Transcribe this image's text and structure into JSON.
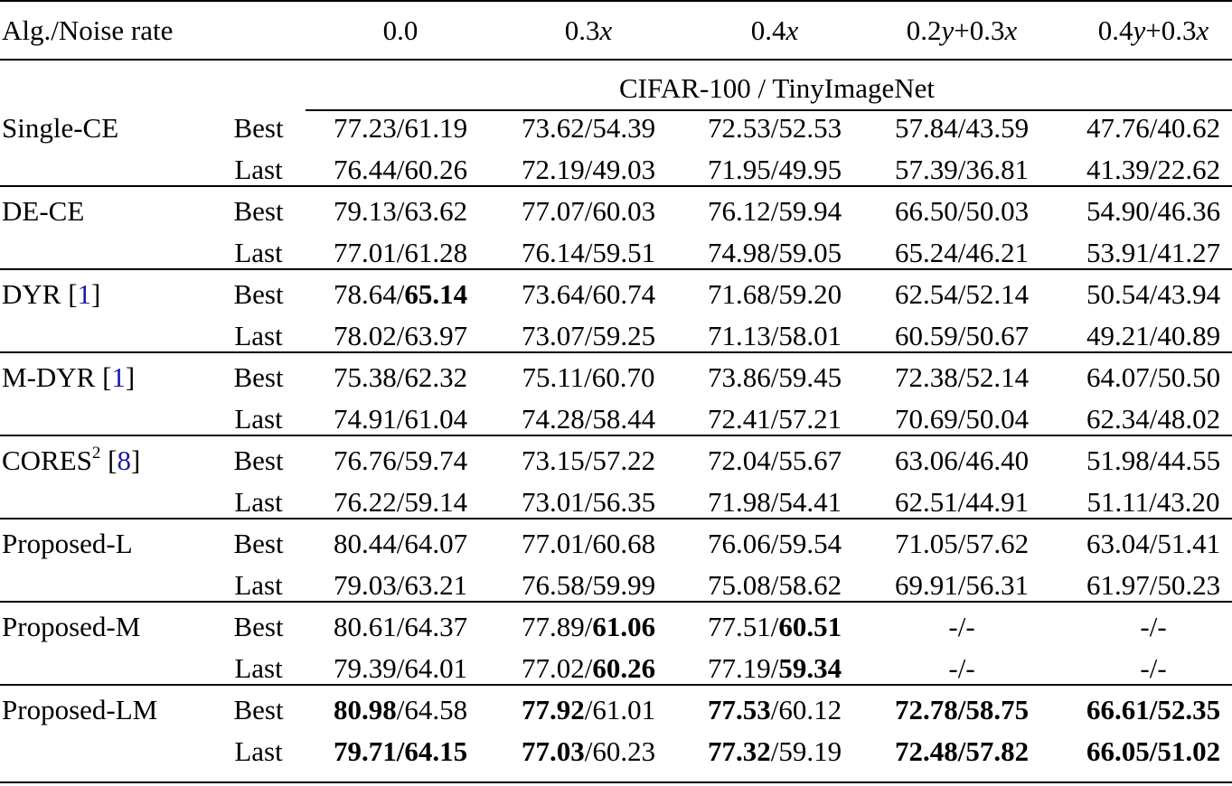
{
  "table": {
    "header": {
      "label": "Alg./Noise rate",
      "columns": [
        {
          "num": "0.0",
          "var": "",
          "rest": ""
        },
        {
          "num": "0.3",
          "var": "x",
          "rest": ""
        },
        {
          "num": "0.4",
          "var": "x",
          "rest": ""
        },
        {
          "num": "0.2",
          "var": "y",
          "rest": "+0.3",
          "var2": "x"
        },
        {
          "num": "0.4",
          "var": "y",
          "rest": "+0.3",
          "var2": "x"
        }
      ]
    },
    "subheader": "CIFAR-100 / TinyImageNet",
    "groups": [
      {
        "name": "Single-CE",
        "sup": "",
        "ref": "",
        "ref_close": "",
        "rows": [
          {
            "type": "Best",
            "cells": [
              {
                "a": "77.23",
                "b": "61.19",
                "bold_a": false,
                "bold_b": false
              },
              {
                "a": "73.62",
                "b": "54.39",
                "bold_a": false,
                "bold_b": false
              },
              {
                "a": "72.53",
                "b": "52.53",
                "bold_a": false,
                "bold_b": false
              },
              {
                "a": "57.84",
                "b": "43.59",
                "bold_a": false,
                "bold_b": false
              },
              {
                "a": "47.76",
                "b": "40.62",
                "bold_a": false,
                "bold_b": false
              }
            ]
          },
          {
            "type": "Last",
            "cells": [
              {
                "a": "76.44",
                "b": "60.26",
                "bold_a": false,
                "bold_b": false
              },
              {
                "a": "72.19",
                "b": "49.03",
                "bold_a": false,
                "bold_b": false
              },
              {
                "a": "71.95",
                "b": "49.95",
                "bold_a": false,
                "bold_b": false
              },
              {
                "a": "57.39",
                "b": "36.81",
                "bold_a": false,
                "bold_b": false
              },
              {
                "a": "41.39",
                "b": "22.62",
                "bold_a": false,
                "bold_b": false
              }
            ]
          }
        ]
      },
      {
        "name": "DE-CE",
        "sup": "",
        "ref": "",
        "ref_close": "",
        "rows": [
          {
            "type": "Best",
            "cells": [
              {
                "a": "79.13",
                "b": "63.62",
                "bold_a": false,
                "bold_b": false
              },
              {
                "a": "77.07",
                "b": "60.03",
                "bold_a": false,
                "bold_b": false
              },
              {
                "a": "76.12",
                "b": "59.94",
                "bold_a": false,
                "bold_b": false
              },
              {
                "a": "66.50",
                "b": "50.03",
                "bold_a": false,
                "bold_b": false
              },
              {
                "a": "54.90",
                "b": "46.36",
                "bold_a": false,
                "bold_b": false
              }
            ]
          },
          {
            "type": "Last",
            "cells": [
              {
                "a": "77.01",
                "b": "61.28",
                "bold_a": false,
                "bold_b": false
              },
              {
                "a": "76.14",
                "b": "59.51",
                "bold_a": false,
                "bold_b": false
              },
              {
                "a": "74.98",
                "b": "59.05",
                "bold_a": false,
                "bold_b": false
              },
              {
                "a": "65.24",
                "b": "46.21",
                "bold_a": false,
                "bold_b": false
              },
              {
                "a": "53.91",
                "b": "41.27",
                "bold_a": false,
                "bold_b": false
              }
            ]
          }
        ]
      },
      {
        "name": "DYR",
        "sup": "",
        "ref": "1",
        "ref_close": "]",
        "rows": [
          {
            "type": "Best",
            "cells": [
              {
                "a": "78.64",
                "b": "65.14",
                "bold_a": false,
                "bold_b": true
              },
              {
                "a": "73.64",
                "b": "60.74",
                "bold_a": false,
                "bold_b": false
              },
              {
                "a": "71.68",
                "b": "59.20",
                "bold_a": false,
                "bold_b": false
              },
              {
                "a": "62.54",
                "b": "52.14",
                "bold_a": false,
                "bold_b": false
              },
              {
                "a": "50.54",
                "b": "43.94",
                "bold_a": false,
                "bold_b": false
              }
            ]
          },
          {
            "type": "Last",
            "cells": [
              {
                "a": "78.02",
                "b": "63.97",
                "bold_a": false,
                "bold_b": false
              },
              {
                "a": "73.07",
                "b": "59.25",
                "bold_a": false,
                "bold_b": false
              },
              {
                "a": "71.13",
                "b": "58.01",
                "bold_a": false,
                "bold_b": false
              },
              {
                "a": "60.59",
                "b": "50.67",
                "bold_a": false,
                "bold_b": false
              },
              {
                "a": "49.21",
                "b": "40.89",
                "bold_a": false,
                "bold_b": false
              }
            ]
          }
        ]
      },
      {
        "name": "M-DYR",
        "sup": "",
        "ref": "1",
        "ref_close": "]",
        "rows": [
          {
            "type": "Best",
            "cells": [
              {
                "a": "75.38",
                "b": "62.32",
                "bold_a": false,
                "bold_b": false
              },
              {
                "a": "75.11",
                "b": "60.70",
                "bold_a": false,
                "bold_b": false
              },
              {
                "a": "73.86",
                "b": "59.45",
                "bold_a": false,
                "bold_b": false
              },
              {
                "a": "72.38",
                "b": "52.14",
                "bold_a": false,
                "bold_b": false
              },
              {
                "a": "64.07",
                "b": "50.50",
                "bold_a": false,
                "bold_b": false
              }
            ]
          },
          {
            "type": "Last",
            "cells": [
              {
                "a": "74.91",
                "b": "61.04",
                "bold_a": false,
                "bold_b": false
              },
              {
                "a": "74.28",
                "b": "58.44",
                "bold_a": false,
                "bold_b": false
              },
              {
                "a": "72.41",
                "b": "57.21",
                "bold_a": false,
                "bold_b": false
              },
              {
                "a": "70.69",
                "b": "50.04",
                "bold_a": false,
                "bold_b": false
              },
              {
                "a": "62.34",
                "b": "48.02",
                "bold_a": false,
                "bold_b": false
              }
            ]
          }
        ]
      },
      {
        "name": "CORES",
        "sup": "2",
        "ref": "8",
        "ref_close": "]",
        "rows": [
          {
            "type": "Best",
            "cells": [
              {
                "a": "76.76",
                "b": "59.74",
                "bold_a": false,
                "bold_b": false
              },
              {
                "a": "73.15",
                "b": "57.22",
                "bold_a": false,
                "bold_b": false
              },
              {
                "a": "72.04",
                "b": "55.67",
                "bold_a": false,
                "bold_b": false
              },
              {
                "a": "63.06",
                "b": "46.40",
                "bold_a": false,
                "bold_b": false
              },
              {
                "a": "51.98",
                "b": "44.55",
                "bold_a": false,
                "bold_b": false
              }
            ]
          },
          {
            "type": "Last",
            "cells": [
              {
                "a": "76.22",
                "b": "59.14",
                "bold_a": false,
                "bold_b": false
              },
              {
                "a": "73.01",
                "b": "56.35",
                "bold_a": false,
                "bold_b": false
              },
              {
                "a": "71.98",
                "b": "54.41",
                "bold_a": false,
                "bold_b": false
              },
              {
                "a": "62.51",
                "b": "44.91",
                "bold_a": false,
                "bold_b": false
              },
              {
                "a": "51.11",
                "b": "43.20",
                "bold_a": false,
                "bold_b": false
              }
            ]
          }
        ]
      },
      {
        "name": "Proposed-L",
        "sup": "",
        "ref": "",
        "ref_close": "",
        "rows": [
          {
            "type": "Best",
            "cells": [
              {
                "a": "80.44",
                "b": "64.07",
                "bold_a": false,
                "bold_b": false
              },
              {
                "a": "77.01",
                "b": "60.68",
                "bold_a": false,
                "bold_b": false
              },
              {
                "a": "76.06",
                "b": "59.54",
                "bold_a": false,
                "bold_b": false
              },
              {
                "a": "71.05",
                "b": "57.62",
                "bold_a": false,
                "bold_b": false
              },
              {
                "a": "63.04",
                "b": "51.41",
                "bold_a": false,
                "bold_b": false
              }
            ]
          },
          {
            "type": "Last",
            "cells": [
              {
                "a": "79.03",
                "b": "63.21",
                "bold_a": false,
                "bold_b": false
              },
              {
                "a": "76.58",
                "b": "59.99",
                "bold_a": false,
                "bold_b": false
              },
              {
                "a": "75.08",
                "b": "58.62",
                "bold_a": false,
                "bold_b": false
              },
              {
                "a": "69.91",
                "b": "56.31",
                "bold_a": false,
                "bold_b": false
              },
              {
                "a": "61.97",
                "b": "50.23",
                "bold_a": false,
                "bold_b": false
              }
            ]
          }
        ]
      },
      {
        "name": "Proposed-M",
        "sup": "",
        "ref": "",
        "ref_close": "",
        "rows": [
          {
            "type": "Best",
            "cells": [
              {
                "a": "80.61",
                "b": "64.37",
                "bold_a": false,
                "bold_b": false
              },
              {
                "a": "77.89",
                "b": "61.06",
                "bold_a": false,
                "bold_b": true
              },
              {
                "a": "77.51",
                "b": "60.51",
                "bold_a": false,
                "bold_b": true
              },
              {
                "a": "-",
                "b": "-",
                "bold_a": false,
                "bold_b": false
              },
              {
                "a": "-",
                "b": "-",
                "bold_a": false,
                "bold_b": false
              }
            ]
          },
          {
            "type": "Last",
            "cells": [
              {
                "a": "79.39",
                "b": "64.01",
                "bold_a": false,
                "bold_b": false
              },
              {
                "a": "77.02",
                "b": "60.26",
                "bold_a": false,
                "bold_b": true
              },
              {
                "a": "77.19",
                "b": "59.34",
                "bold_a": false,
                "bold_b": true
              },
              {
                "a": "-",
                "b": "-",
                "bold_a": false,
                "bold_b": false
              },
              {
                "a": "-",
                "b": "-",
                "bold_a": false,
                "bold_b": false
              }
            ]
          }
        ]
      },
      {
        "name": "Proposed-LM",
        "sup": "",
        "ref": "",
        "ref_close": "",
        "rows": [
          {
            "type": "Best",
            "cells": [
              {
                "a": "80.98",
                "b": "64.58",
                "bold_a": true,
                "bold_b": false
              },
              {
                "a": "77.92",
                "b": "61.01",
                "bold_a": true,
                "bold_b": false
              },
              {
                "a": "77.53",
                "b": "60.12",
                "bold_a": true,
                "bold_b": false
              },
              {
                "a": "72.78",
                "b": "58.75",
                "bold_a": true,
                "bold_b": true
              },
              {
                "a": "66.61",
                "b": "52.35",
                "bold_a": true,
                "bold_b": true
              }
            ]
          },
          {
            "type": "Last",
            "cells": [
              {
                "a": "79.71",
                "b": "64.15",
                "bold_a": true,
                "bold_b": true
              },
              {
                "a": "77.03",
                "b": "60.23",
                "bold_a": true,
                "bold_b": false
              },
              {
                "a": "77.32",
                "b": "59.19",
                "bold_a": true,
                "bold_b": false
              },
              {
                "a": "72.48",
                "b": "57.82",
                "bold_a": true,
                "bold_b": true
              },
              {
                "a": "66.05",
                "b": "51.02",
                "bold_a": true,
                "bold_b": true
              }
            ]
          }
        ]
      }
    ]
  }
}
